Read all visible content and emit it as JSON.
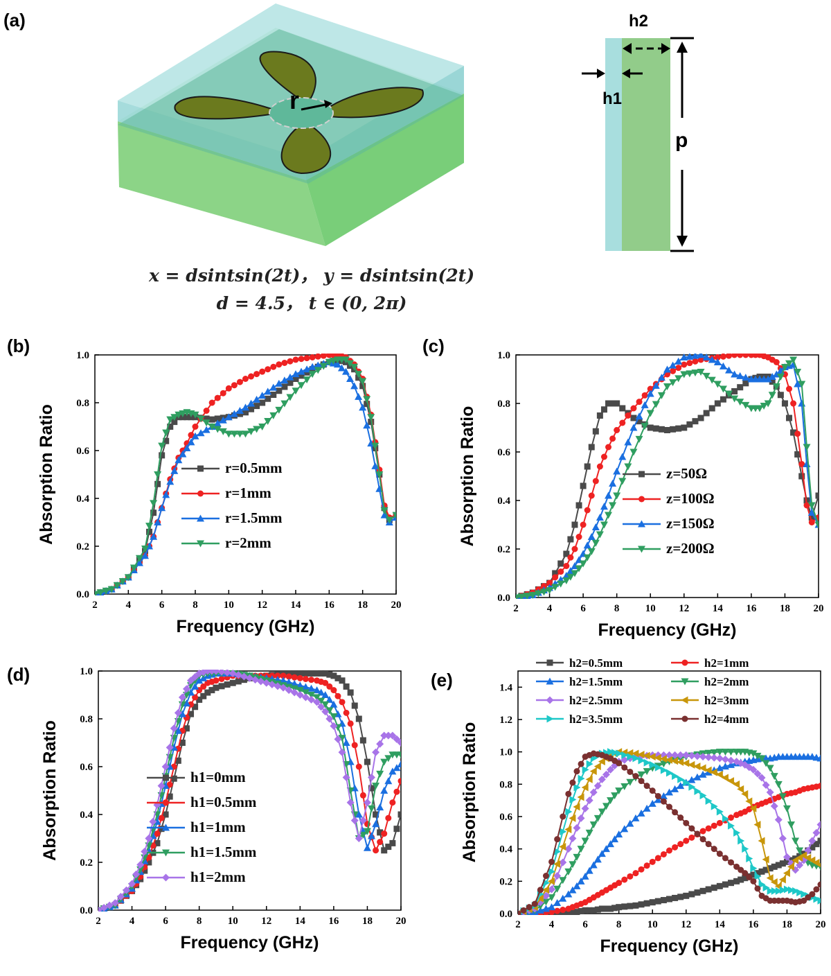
{
  "panel_a": {
    "label": "(a)",
    "r_label": "r",
    "h1_label": "h1",
    "h2_label": "h2",
    "p_label": "p",
    "formula_line1": "x = dsintsin(2t)， y = dsintsin(2t)",
    "formula_line2": "d = 4.5， t ∈ (0, 2π)",
    "colors": {
      "top_layer": "#a8dede",
      "bottom_layer": "#8fd08a",
      "petal": "#6b7a1e"
    }
  },
  "chart_data": [
    {
      "id": "b",
      "panel_label": "(b)",
      "type": "line",
      "xlabel": "Frequency (GHz)",
      "ylabel": "Absorption Ratio",
      "xlim": [
        2,
        20
      ],
      "ylim": [
        0,
        1.0
      ],
      "xticks": [
        "2",
        "4",
        "6",
        "8",
        "10",
        "12",
        "14",
        "16",
        "18",
        "20"
      ],
      "yticks": [
        "0.0",
        "0.2",
        "0.4",
        "0.6",
        "0.8",
        "1.0"
      ],
      "legend_position": "center-right",
      "x": [
        2,
        3,
        4,
        5,
        5.5,
        6,
        6.5,
        7,
        7.5,
        8,
        9,
        10,
        11,
        12,
        13,
        14,
        15,
        16,
        16.5,
        17,
        17.5,
        18,
        18.5,
        19,
        19.3,
        19.6,
        20
      ],
      "series": [
        {
          "name": "r=0.5mm",
          "color": "#4a4a4a",
          "marker": "square",
          "values": [
            0.0,
            0.02,
            0.07,
            0.18,
            0.34,
            0.58,
            0.7,
            0.74,
            0.74,
            0.74,
            0.73,
            0.74,
            0.76,
            0.8,
            0.85,
            0.9,
            0.94,
            0.97,
            0.98,
            0.97,
            0.94,
            0.87,
            0.72,
            0.5,
            0.36,
            0.31,
            0.33
          ]
        },
        {
          "name": "r=1mm",
          "color": "#ee2222",
          "marker": "circle",
          "values": [
            0.0,
            0.02,
            0.07,
            0.16,
            0.24,
            0.36,
            0.48,
            0.57,
            0.63,
            0.7,
            0.8,
            0.86,
            0.9,
            0.93,
            0.96,
            0.98,
            0.99,
            1.0,
            1.0,
            0.99,
            0.96,
            0.9,
            0.75,
            0.52,
            0.37,
            0.32,
            0.33
          ]
        },
        {
          "name": "r=1.5mm",
          "color": "#1a6fe0",
          "marker": "triangle-up",
          "values": [
            0.0,
            0.02,
            0.07,
            0.16,
            0.24,
            0.36,
            0.47,
            0.56,
            0.61,
            0.66,
            0.7,
            0.74,
            0.78,
            0.83,
            0.88,
            0.92,
            0.95,
            0.97,
            0.96,
            0.93,
            0.87,
            0.78,
            0.63,
            0.44,
            0.33,
            0.3,
            0.32
          ]
        },
        {
          "name": "r=2mm",
          "color": "#2f9e60",
          "marker": "triangle-down",
          "values": [
            0.0,
            0.02,
            0.07,
            0.19,
            0.38,
            0.62,
            0.73,
            0.75,
            0.76,
            0.75,
            0.7,
            0.67,
            0.67,
            0.7,
            0.77,
            0.85,
            0.92,
            0.97,
            0.98,
            0.98,
            0.95,
            0.89,
            0.74,
            0.5,
            0.35,
            0.31,
            0.33
          ]
        }
      ]
    },
    {
      "id": "c",
      "panel_label": "(c)",
      "type": "line",
      "xlabel": "Frequency (GHz)",
      "ylabel": "Absorption Ratio",
      "xlim": [
        2,
        20
      ],
      "ylim": [
        0,
        1.0
      ],
      "xticks": [
        "2",
        "4",
        "6",
        "8",
        "10",
        "12",
        "14",
        "16",
        "18",
        "20"
      ],
      "yticks": [
        "0.0",
        "0.2",
        "0.4",
        "0.6",
        "0.8",
        "1.0"
      ],
      "legend_position": "center-right",
      "x": [
        2,
        3,
        4,
        5,
        5.5,
        6,
        6.5,
        7,
        7.5,
        8,
        9,
        10,
        11,
        12,
        13,
        14,
        15,
        16,
        16.5,
        17,
        17.5,
        18,
        18.5,
        19,
        19.3,
        19.6,
        20
      ],
      "series": [
        {
          "name": "z=50Ω",
          "color": "#4a4a4a",
          "marker": "square",
          "values": [
            0.0,
            0.02,
            0.06,
            0.18,
            0.3,
            0.46,
            0.62,
            0.75,
            0.8,
            0.8,
            0.74,
            0.7,
            0.69,
            0.7,
            0.74,
            0.8,
            0.85,
            0.9,
            0.91,
            0.91,
            0.87,
            0.8,
            0.68,
            0.5,
            0.4,
            0.33,
            0.42
          ]
        },
        {
          "name": "z=100Ω",
          "color": "#ee2222",
          "marker": "circle",
          "values": [
            0.0,
            0.02,
            0.06,
            0.13,
            0.2,
            0.3,
            0.42,
            0.54,
            0.62,
            0.69,
            0.78,
            0.86,
            0.92,
            0.96,
            0.98,
            0.99,
            1.0,
            1.0,
            1.0,
            0.99,
            0.97,
            0.92,
            0.8,
            0.55,
            0.38,
            0.31,
            0.33
          ]
        },
        {
          "name": "z=150Ω",
          "color": "#1a6fe0",
          "marker": "triangle-up",
          "values": [
            0.0,
            0.01,
            0.04,
            0.09,
            0.13,
            0.18,
            0.25,
            0.33,
            0.42,
            0.52,
            0.7,
            0.84,
            0.94,
            0.99,
            1.0,
            0.97,
            0.92,
            0.9,
            0.9,
            0.9,
            0.92,
            0.95,
            0.96,
            0.8,
            0.55,
            0.35,
            0.3
          ]
        },
        {
          "name": "z=200Ω",
          "color": "#2f9e60",
          "marker": "triangle-down",
          "values": [
            0.0,
            0.01,
            0.03,
            0.07,
            0.1,
            0.14,
            0.19,
            0.26,
            0.34,
            0.42,
            0.6,
            0.76,
            0.87,
            0.92,
            0.93,
            0.88,
            0.82,
            0.78,
            0.78,
            0.8,
            0.87,
            0.95,
            0.98,
            0.88,
            0.62,
            0.38,
            0.3
          ]
        }
      ]
    },
    {
      "id": "d",
      "panel_label": "(d)",
      "type": "line",
      "xlabel": "Frequency (GHz)",
      "ylabel": "Absorption Ratio",
      "xlim": [
        2,
        20
      ],
      "ylim": [
        0,
        1.0
      ],
      "xticks": [
        "2",
        "4",
        "6",
        "8",
        "10",
        "12",
        "14",
        "16",
        "18",
        "20"
      ],
      "yticks": [
        "0.0",
        "0.2",
        "0.4",
        "0.6",
        "0.8",
        "1.0"
      ],
      "legend_position": "center",
      "x": [
        2,
        3,
        4,
        4.5,
        5,
        5.5,
        6,
        6.5,
        7,
        7.5,
        8,
        8.5,
        9,
        10,
        11,
        12,
        13,
        14,
        15,
        15.5,
        16,
        16.5,
        17,
        17.5,
        18,
        18.5,
        19,
        19.5,
        20
      ],
      "series": [
        {
          "name": "h1=0mm",
          "color": "#4a4a4a",
          "marker": "square",
          "values": [
            0.0,
            0.02,
            0.08,
            0.13,
            0.2,
            0.28,
            0.4,
            0.55,
            0.7,
            0.82,
            0.88,
            0.91,
            0.93,
            0.95,
            0.97,
            0.98,
            0.99,
            0.99,
            0.99,
            0.99,
            0.98,
            0.96,
            0.91,
            0.8,
            0.62,
            0.4,
            0.25,
            0.28,
            0.4
          ]
        },
        {
          "name": "h1=0.5mm",
          "color": "#ee2222",
          "marker": "circle",
          "values": [
            0.0,
            0.02,
            0.08,
            0.14,
            0.22,
            0.32,
            0.45,
            0.6,
            0.75,
            0.86,
            0.92,
            0.95,
            0.96,
            0.98,
            0.98,
            0.98,
            0.98,
            0.97,
            0.96,
            0.95,
            0.92,
            0.87,
            0.78,
            0.6,
            0.36,
            0.25,
            0.32,
            0.45,
            0.54
          ]
        },
        {
          "name": "h1=1mm",
          "color": "#1a6fe0",
          "marker": "triangle-up",
          "values": [
            0.0,
            0.02,
            0.09,
            0.16,
            0.25,
            0.37,
            0.52,
            0.68,
            0.82,
            0.91,
            0.96,
            0.98,
            0.99,
            0.99,
            0.98,
            0.97,
            0.96,
            0.94,
            0.92,
            0.9,
            0.86,
            0.78,
            0.62,
            0.4,
            0.26,
            0.36,
            0.5,
            0.58,
            0.61
          ]
        },
        {
          "name": "h1=1.5mm",
          "color": "#2f9e60",
          "marker": "triangle-down",
          "values": [
            0.0,
            0.02,
            0.1,
            0.17,
            0.27,
            0.4,
            0.56,
            0.72,
            0.86,
            0.94,
            0.98,
            0.99,
            0.99,
            0.99,
            0.98,
            0.96,
            0.94,
            0.92,
            0.89,
            0.86,
            0.81,
            0.72,
            0.5,
            0.3,
            0.33,
            0.52,
            0.62,
            0.65,
            0.65
          ]
        },
        {
          "name": "h1=2mm",
          "color": "#a874e8",
          "marker": "diamond",
          "values": [
            0.0,
            0.03,
            0.11,
            0.19,
            0.3,
            0.44,
            0.6,
            0.76,
            0.89,
            0.96,
            0.99,
            1.0,
            1.0,
            0.99,
            0.97,
            0.95,
            0.93,
            0.9,
            0.87,
            0.83,
            0.77,
            0.66,
            0.45,
            0.3,
            0.45,
            0.66,
            0.73,
            0.73,
            0.7
          ]
        }
      ]
    },
    {
      "id": "e",
      "panel_label": "(e)",
      "type": "line",
      "xlabel": "Frequency (GHz)",
      "ylabel": "Absorption Ratio",
      "xlim": [
        2,
        20
      ],
      "ylim": [
        0,
        1.5
      ],
      "xticks": [
        "2",
        "4",
        "6",
        "8",
        "10",
        "12",
        "14",
        "16",
        "18",
        "20"
      ],
      "yticks": [
        "0.0",
        "0.2",
        "0.4",
        "0.6",
        "0.8",
        "1.0",
        "1.2",
        "1.4"
      ],
      "legend_position": "top",
      "x": [
        2,
        3,
        4,
        5,
        5.5,
        6,
        6.5,
        7,
        7.5,
        8,
        9,
        10,
        11,
        12,
        13,
        14,
        15,
        15.5,
        16,
        16.5,
        17,
        17.5,
        18,
        18.5,
        19,
        19.5,
        20
      ],
      "series": [
        {
          "name": "h2=0.5mm",
          "color": "#4a4a4a",
          "marker": "square",
          "values": [
            0.0,
            0.0,
            0.0,
            0.01,
            0.01,
            0.02,
            0.02,
            0.03,
            0.03,
            0.04,
            0.05,
            0.07,
            0.09,
            0.11,
            0.14,
            0.17,
            0.2,
            0.22,
            0.24,
            0.26,
            0.28,
            0.3,
            0.32,
            0.34,
            0.37,
            0.41,
            0.45
          ]
        },
        {
          "name": "h2=1mm",
          "color": "#ee2222",
          "marker": "circle",
          "values": [
            0.0,
            0.0,
            0.01,
            0.03,
            0.05,
            0.07,
            0.1,
            0.13,
            0.16,
            0.19,
            0.25,
            0.32,
            0.39,
            0.45,
            0.51,
            0.56,
            0.61,
            0.63,
            0.66,
            0.68,
            0.7,
            0.72,
            0.74,
            0.75,
            0.77,
            0.78,
            0.79
          ]
        },
        {
          "name": "h2=1.5mm",
          "color": "#1a6fe0",
          "marker": "triangle-up",
          "values": [
            0.0,
            0.01,
            0.04,
            0.12,
            0.17,
            0.23,
            0.3,
            0.37,
            0.43,
            0.49,
            0.59,
            0.68,
            0.75,
            0.81,
            0.86,
            0.9,
            0.93,
            0.94,
            0.95,
            0.96,
            0.96,
            0.97,
            0.97,
            0.97,
            0.97,
            0.97,
            0.96
          ]
        },
        {
          "name": "h2=2mm",
          "color": "#2f9e60",
          "marker": "triangle-down",
          "values": [
            0.0,
            0.02,
            0.1,
            0.26,
            0.35,
            0.45,
            0.55,
            0.63,
            0.7,
            0.76,
            0.84,
            0.9,
            0.94,
            0.97,
            0.99,
            1.0,
            1.0,
            1.0,
            0.99,
            0.96,
            0.9,
            0.8,
            0.65,
            0.45,
            0.33,
            0.3,
            0.29
          ]
        },
        {
          "name": "h2=2.5mm",
          "color": "#a874e8",
          "marker": "diamond",
          "values": [
            0.0,
            0.03,
            0.15,
            0.4,
            0.53,
            0.65,
            0.75,
            0.83,
            0.89,
            0.94,
            0.97,
            0.98,
            0.98,
            0.98,
            0.97,
            0.96,
            0.94,
            0.92,
            0.89,
            0.84,
            0.75,
            0.58,
            0.35,
            0.27,
            0.33,
            0.45,
            0.55
          ]
        },
        {
          "name": "h2=3mm",
          "color": "#c8960a",
          "marker": "triangle-left",
          "values": [
            0.0,
            0.04,
            0.2,
            0.52,
            0.66,
            0.78,
            0.88,
            0.94,
            0.98,
            1.0,
            0.99,
            0.97,
            0.95,
            0.93,
            0.9,
            0.86,
            0.8,
            0.74,
            0.65,
            0.45,
            0.22,
            0.17,
            0.25,
            0.33,
            0.36,
            0.33,
            0.3
          ]
        },
        {
          "name": "h2=3.5mm",
          "color": "#1ec8c8",
          "marker": "triangle-right",
          "values": [
            0.0,
            0.05,
            0.26,
            0.63,
            0.78,
            0.89,
            0.96,
            0.99,
            1.0,
            0.99,
            0.96,
            0.92,
            0.87,
            0.81,
            0.73,
            0.63,
            0.5,
            0.4,
            0.28,
            0.18,
            0.14,
            0.14,
            0.15,
            0.14,
            0.12,
            0.1,
            0.08
          ]
        },
        {
          "name": "h2=4mm",
          "color": "#7a3030",
          "marker": "circle",
          "values": [
            0.0,
            0.06,
            0.32,
            0.74,
            0.88,
            0.97,
            0.99,
            0.98,
            0.96,
            0.93,
            0.85,
            0.76,
            0.66,
            0.56,
            0.46,
            0.37,
            0.29,
            0.25,
            0.2,
            0.11,
            0.08,
            0.08,
            0.08,
            0.07,
            0.08,
            0.12,
            0.18
          ]
        }
      ]
    }
  ]
}
